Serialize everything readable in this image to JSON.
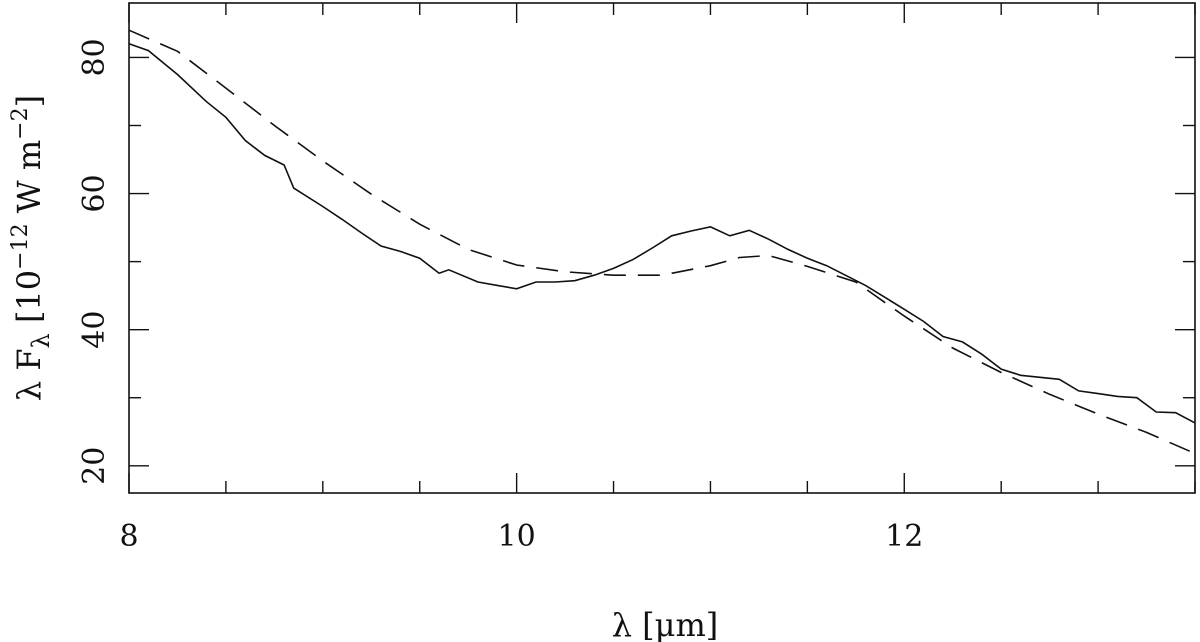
{
  "chart_data": {
    "type": "line",
    "xlabel": "λ [μm]",
    "ylabel": "λ F_λ [10^-12 W m^-2]",
    "xlim": [
      8,
      13.5
    ],
    "ylim": [
      16,
      88
    ],
    "x_ticks": [
      8,
      10,
      12
    ],
    "y_ticks": [
      20,
      40,
      60,
      80
    ],
    "grid": false,
    "series": [
      {
        "style": "solid",
        "x": [
          8.0,
          8.1,
          8.25,
          8.4,
          8.5,
          8.6,
          8.7,
          8.8,
          8.85,
          9.0,
          9.1,
          9.2,
          9.3,
          9.4,
          9.5,
          9.6,
          9.65,
          9.8,
          9.9,
          10.0,
          10.1,
          10.2,
          10.3,
          10.4,
          10.5,
          10.6,
          10.7,
          10.8,
          10.9,
          11.0,
          11.1,
          11.2,
          11.3,
          11.4,
          11.5,
          11.6,
          11.8,
          12.0,
          12.1,
          12.2,
          12.3,
          12.4,
          12.5,
          12.6,
          12.7,
          12.8,
          12.9,
          13.0,
          13.1,
          13.2,
          13.3,
          13.4,
          13.5
        ],
        "y": [
          82,
          81,
          77.5,
          73.5,
          71.2,
          67.8,
          65.6,
          64.2,
          60.8,
          58.1,
          56.2,
          54.2,
          52.3,
          51.5,
          50.5,
          48.3,
          48.8,
          47.0,
          46.5,
          46.0,
          47.0,
          47.0,
          47.2,
          48.0,
          49.0,
          50.3,
          52.0,
          53.8,
          54.5,
          55.1,
          53.8,
          54.6,
          53.3,
          51.8,
          50.5,
          49.4,
          46.5,
          43.0,
          41.2,
          39.0,
          38.2,
          36.4,
          34.2,
          33.3,
          33.0,
          32.7,
          31.0,
          30.6,
          30.2,
          30.0,
          27.9,
          27.8,
          26.3
        ]
      },
      {
        "style": "dashed",
        "x": [
          8.0,
          8.25,
          8.5,
          8.75,
          9.0,
          9.25,
          9.5,
          9.75,
          10.0,
          10.25,
          10.5,
          10.75,
          11.0,
          11.15,
          11.3,
          11.5,
          11.75,
          12.0,
          12.25,
          12.5,
          12.75,
          13.0,
          13.25,
          13.5
        ],
        "y": [
          84,
          80.9,
          75.5,
          70.0,
          64.8,
          59.9,
          55.5,
          51.8,
          49.5,
          48.5,
          48.0,
          48.0,
          49.4,
          50.6,
          50.9,
          49.3,
          47.0,
          42.0,
          37.3,
          33.7,
          30.5,
          27.6,
          24.9,
          21.8
        ]
      }
    ]
  }
}
